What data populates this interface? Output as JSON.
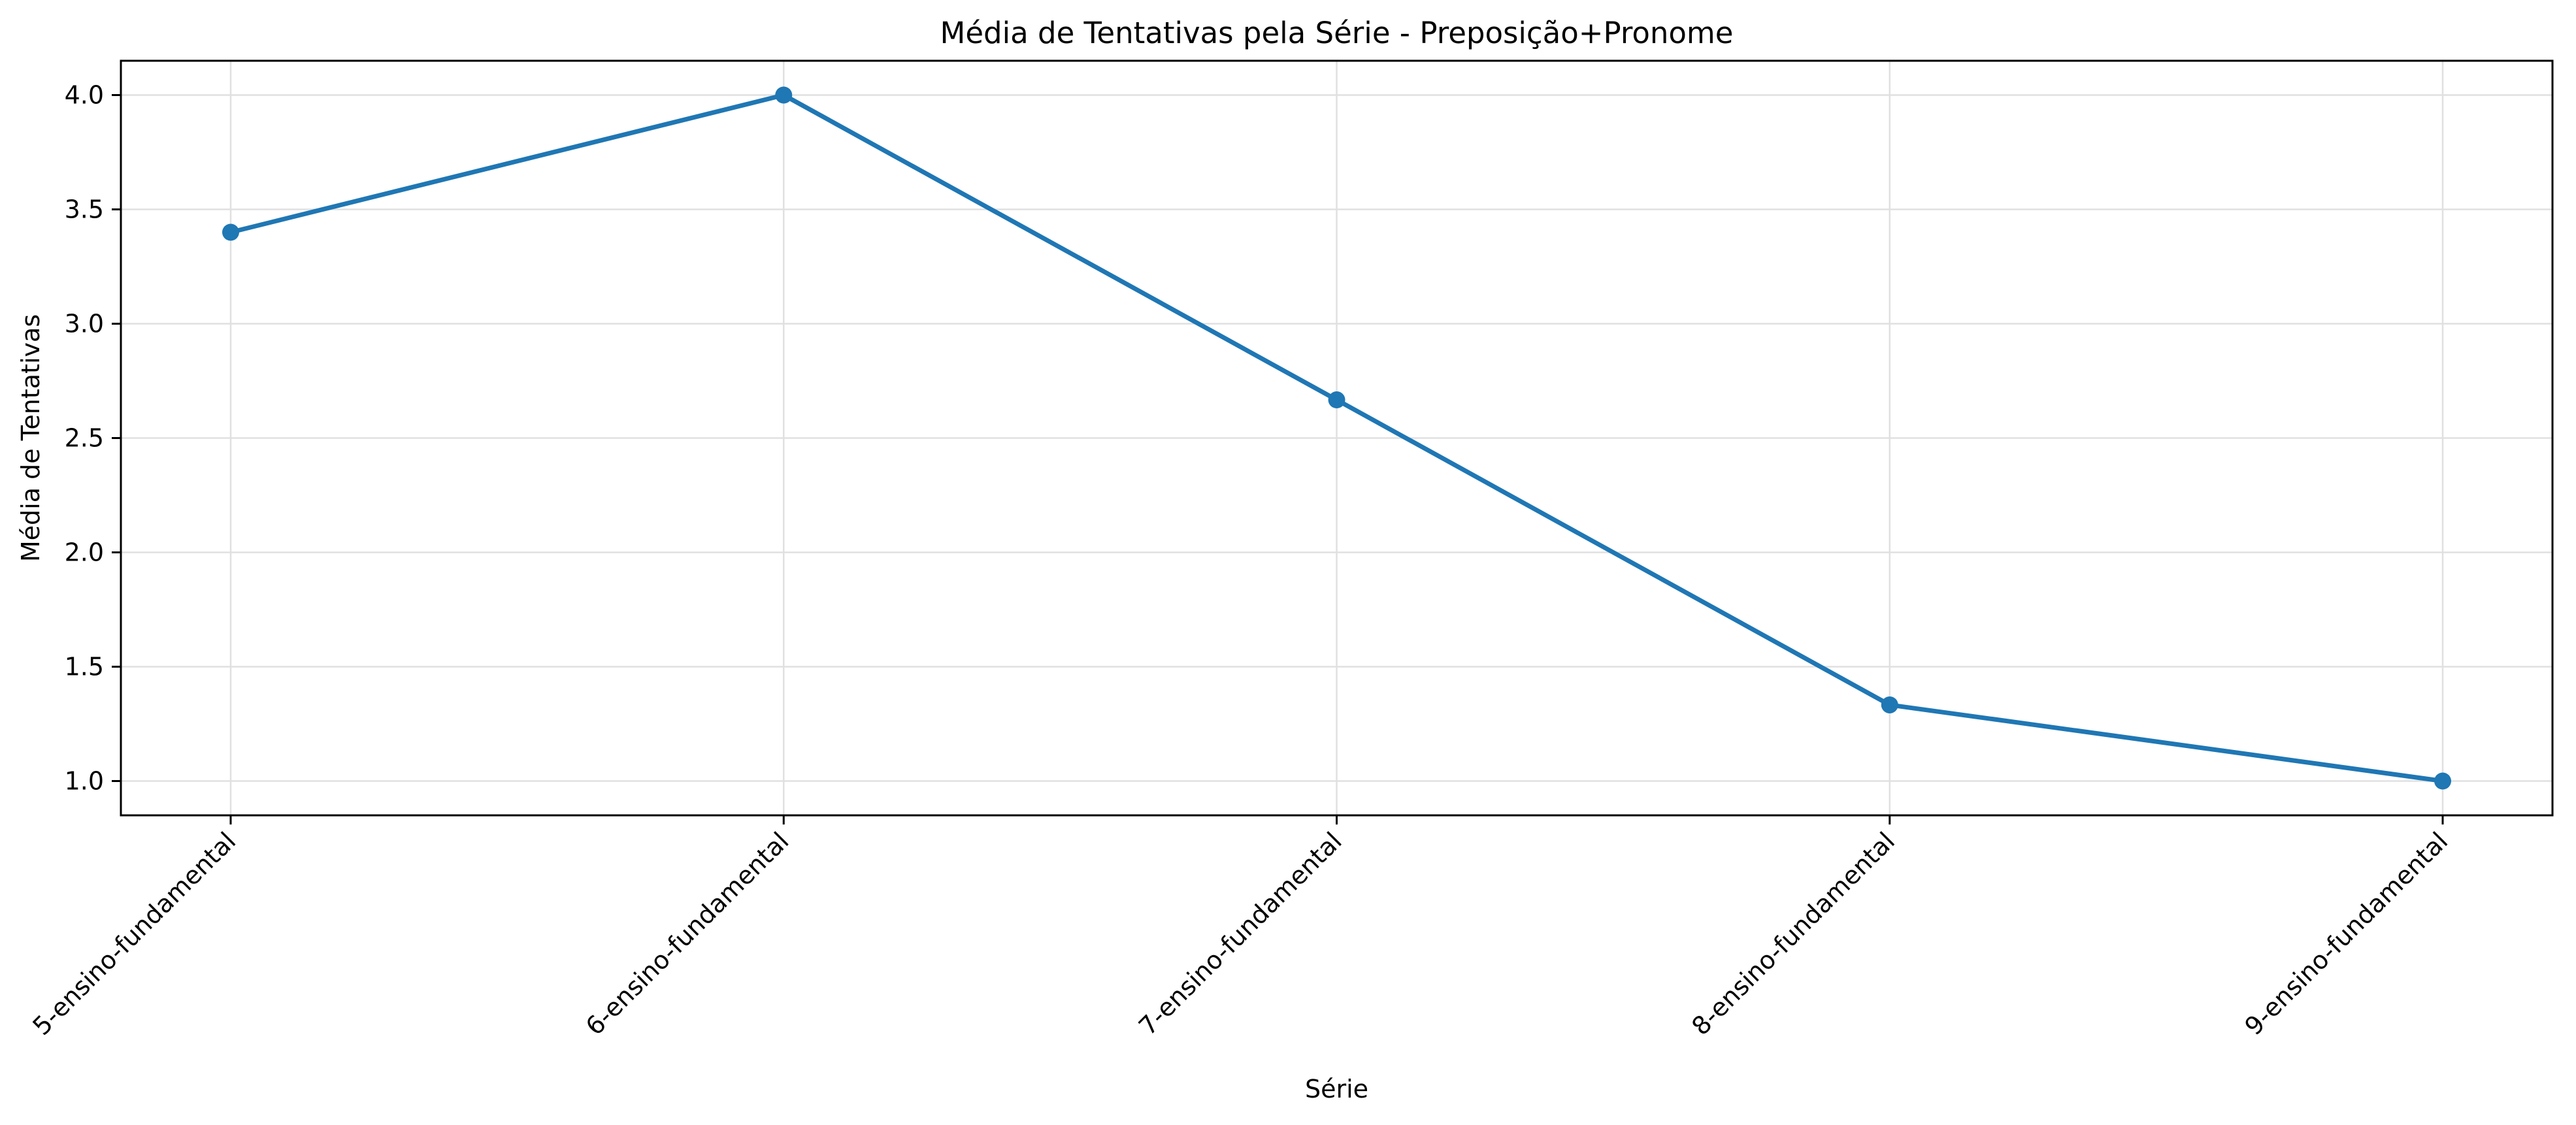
{
  "chart_data": {
    "type": "line",
    "title": "Média de Tentativas pela Série - Preposição+Pronome",
    "xlabel": "Série",
    "ylabel": "Média de Tentativas",
    "categories": [
      "5-ensino-fundamental",
      "6-ensino-fundamental",
      "7-ensino-fundamental",
      "8-ensino-fundamental",
      "9-ensino-fundamental"
    ],
    "series": [
      {
        "values": [
          3.4,
          4.0,
          2.667,
          1.333,
          1.0
        ]
      }
    ],
    "yticks": [
      "1.0",
      "1.5",
      "2.0",
      "2.5",
      "3.0",
      "3.5",
      "4.0"
    ],
    "ylim": [
      0.85,
      4.15
    ],
    "grid": true,
    "legend": "none",
    "colors": {
      "line": "#1f77b4",
      "grid": "#e0e0e0",
      "axis": "#000000"
    }
  }
}
